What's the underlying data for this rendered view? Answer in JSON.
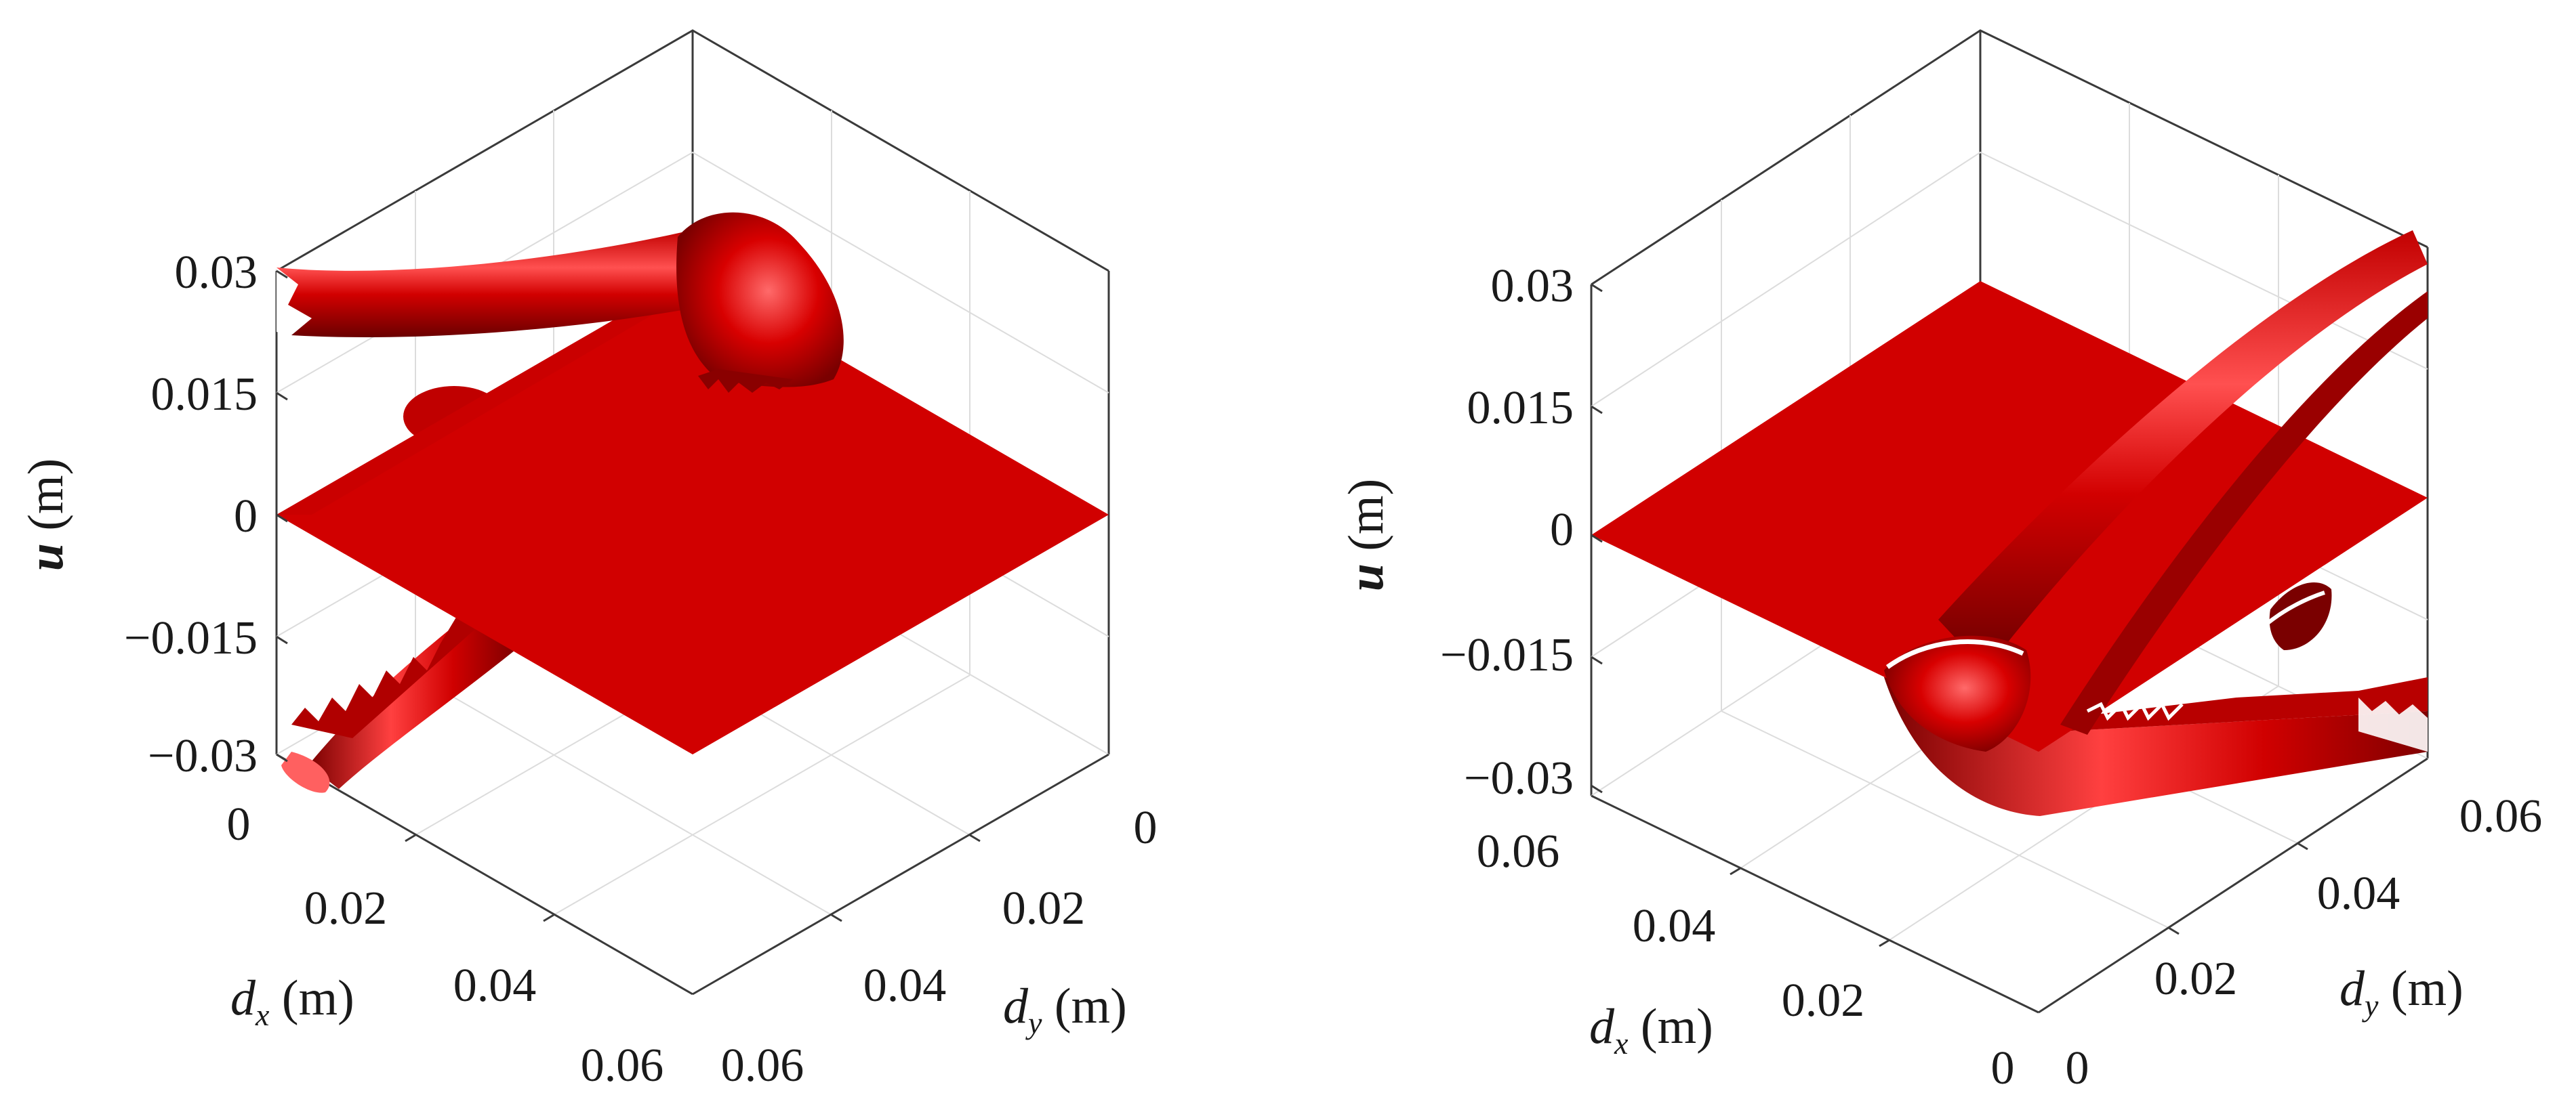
{
  "chart_data": [
    {
      "type": "surface3d",
      "xlabel": {
        "main": "d",
        "sub": "x",
        "unit": " (m)"
      },
      "ylabel": {
        "main": "d",
        "sub": "y",
        "unit": " (m)"
      },
      "zlabel": {
        "main": "u",
        "unit": " (m)"
      },
      "x_ticks": [
        "0",
        "0.02",
        "0.04",
        "0.06"
      ],
      "y_ticks": [
        "0",
        "0.02",
        "0.04",
        "0.06"
      ],
      "z_ticks": [
        "0.03",
        "0.015",
        "0",
        "−0.015",
        "−0.03"
      ],
      "xlim": [
        0,
        0.06
      ],
      "ylim": [
        0,
        0.06
      ],
      "zlim": [
        -0.03,
        0.03
      ],
      "grid": true,
      "surface_color": "#d40000"
    },
    {
      "type": "surface3d",
      "xlabel": {
        "main": "d",
        "sub": "x",
        "unit": " (m)"
      },
      "ylabel": {
        "main": "d",
        "sub": "y",
        "unit": " (m)"
      },
      "zlabel": {
        "main": "u",
        "unit": " (m)"
      },
      "x_ticks": [
        "0.06",
        "0.04",
        "0.02",
        "0"
      ],
      "y_ticks": [
        "0",
        "0.02",
        "0.04",
        "0.06"
      ],
      "z_ticks": [
        "0.03",
        "0.015",
        "0",
        "−0.015",
        "−0.03"
      ],
      "xlim": [
        0,
        0.06
      ],
      "ylim": [
        0,
        0.06
      ],
      "zlim": [
        -0.03,
        0.03
      ],
      "grid": true,
      "surface_color": "#d40000"
    }
  ]
}
